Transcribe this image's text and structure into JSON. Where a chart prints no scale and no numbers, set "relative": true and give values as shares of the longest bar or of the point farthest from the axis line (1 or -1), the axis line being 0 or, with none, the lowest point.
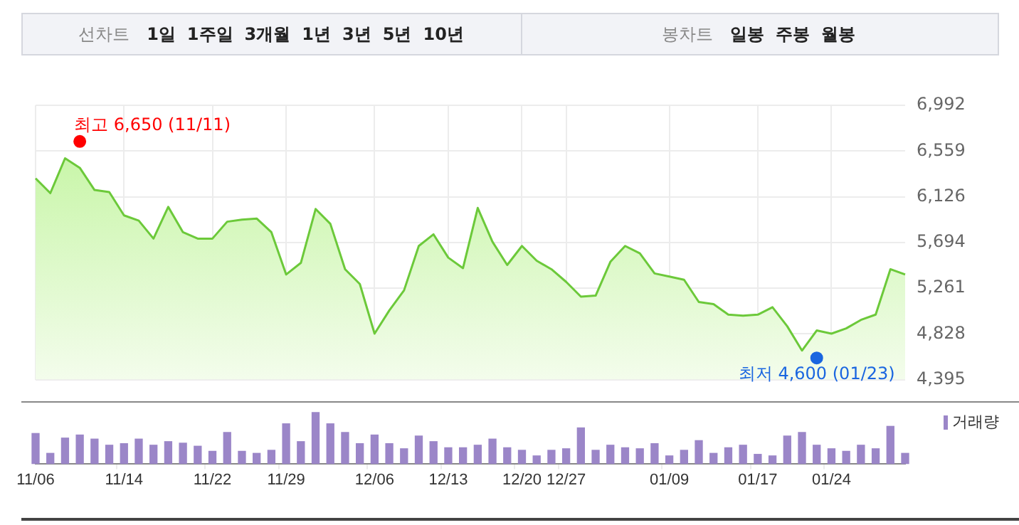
{
  "chart_data": [
    {
      "type": "other",
      "annotations": [
        "선차트",
        "1일",
        "1주일",
        "3개월",
        "1년",
        "3년",
        "5년",
        "10년"
      ]
    },
    {
      "type": "other",
      "annotations": [
        "봉차트",
        "일봉",
        "주봉",
        "월봉"
      ]
    },
    {
      "type": "area",
      "tick_labels": "y",
      "grid": true,
      "categories": [
        null,
        null,
        null,
        null,
        null,
        null,
        null,
        null,
        null,
        null,
        null,
        null,
        null,
        null,
        null,
        null,
        null,
        null,
        null,
        null,
        null,
        null,
        null,
        null,
        null,
        null,
        null,
        null,
        null,
        null,
        null,
        null,
        null,
        null,
        null,
        null,
        null,
        null,
        null,
        null,
        null,
        null,
        null,
        null,
        null,
        null,
        null,
        null,
        null,
        null,
        null,
        null,
        null,
        null,
        null,
        null,
        null,
        null,
        null,
        null
      ],
      "ylim": [
        4395,
        6992
      ],
      "yticks": [
        {
          "value": 4395,
          "label": "4,395"
        },
        {
          "value": 4828,
          "label": "4,828"
        },
        {
          "value": 5261,
          "label": "5,261"
        },
        {
          "value": 5694,
          "label": "5,694"
        },
        {
          "value": 6126,
          "label": "6,126"
        },
        {
          "value": 6559,
          "label": "6,559"
        },
        {
          "value": 6992,
          "label": "6,992"
        }
      ],
      "series": [
        {
          "type": "area",
          "color": "#6cc93a",
          "values": [
            6300,
            6160,
            6490,
            6400,
            6190,
            6170,
            5950,
            5900,
            5730,
            6030,
            5790,
            5730,
            5730,
            5890,
            5910,
            5920,
            5790,
            5390,
            5500,
            6010,
            5870,
            5440,
            5300,
            4830,
            5050,
            5240,
            5660,
            5770,
            5550,
            5450,
            6020,
            5700,
            5480,
            5660,
            5520,
            5440,
            5320,
            5180,
            5190,
            5510,
            5660,
            5590,
            5400,
            5370,
            5340,
            5130,
            5110,
            5010,
            5000,
            5010,
            5080,
            4900,
            4670,
            4860,
            4830,
            4880,
            4960,
            5010,
            5440,
            5390
          ]
        },
        {
          "type": "scatter",
          "marker": "circle",
          "values": [
            null,
            null,
            null,
            6650,
            null,
            null,
            null,
            null,
            null,
            null,
            null,
            null,
            null,
            null,
            null,
            null,
            null,
            null,
            null,
            null,
            null,
            null,
            null,
            null,
            null,
            null,
            null,
            null,
            null,
            null,
            null,
            null,
            null,
            null,
            null,
            null,
            null,
            null,
            null,
            null,
            null,
            null,
            null,
            null,
            null,
            null,
            null,
            null,
            null,
            null,
            null,
            null,
            null,
            4600,
            null,
            null,
            null,
            null,
            null,
            null
          ],
          "colors": [
            null,
            null,
            null,
            "#ff0000",
            null,
            null,
            null,
            null,
            null,
            null,
            null,
            null,
            null,
            null,
            null,
            null,
            null,
            null,
            null,
            null,
            null,
            null,
            null,
            null,
            null,
            null,
            null,
            null,
            null,
            null,
            null,
            null,
            null,
            null,
            null,
            null,
            null,
            null,
            null,
            null,
            null,
            null,
            null,
            null,
            null,
            null,
            null,
            null,
            null,
            null,
            null,
            null,
            null,
            "#1a66e0",
            null,
            null,
            null,
            null,
            null,
            null
          ]
        }
      ],
      "annotations": [
        "최고 6,650 (11/11)",
        "최저 4,600 (01/23)"
      ]
    },
    {
      "type": "bar",
      "relative": true,
      "tick_labels": "x",
      "legend": "top right",
      "categories": [
        "11/06",
        null,
        null,
        null,
        null,
        null,
        "11/14",
        null,
        null,
        null,
        null,
        null,
        "11/22",
        null,
        null,
        null,
        null,
        "11/29",
        null,
        null,
        null,
        null,
        null,
        "12/06",
        null,
        null,
        null,
        null,
        "12/13",
        null,
        null,
        null,
        null,
        "12/20",
        null,
        null,
        "12/27",
        null,
        null,
        null,
        null,
        null,
        null,
        "01/09",
        null,
        null,
        null,
        null,
        null,
        "01/17",
        null,
        null,
        null,
        null,
        "01/24",
        null,
        null,
        null,
        null,
        null
      ],
      "series": [
        {
          "name": "거래량",
          "color": "#9b86c8",
          "values": [
            0.59,
            0.2,
            0.5,
            0.56,
            0.48,
            0.36,
            0.39,
            0.48,
            0.36,
            0.43,
            0.4,
            0.34,
            0.24,
            0.61,
            0.24,
            0.2,
            0.26,
            0.78,
            0.43,
            1,
            0.78,
            0.61,
            0.39,
            0.56,
            0.39,
            0.29,
            0.54,
            0.43,
            0.31,
            0.31,
            0.36,
            0.48,
            0.31,
            0.26,
            0.15,
            0.26,
            0.29,
            0.7,
            0.26,
            0.36,
            0.31,
            0.29,
            0.39,
            0.15,
            0.26,
            0.45,
            0.2,
            0.31,
            0.36,
            0.18,
            0.15,
            0.54,
            0.61,
            0.36,
            0.29,
            0.24,
            0.36,
            0.29,
            0.73,
            0.2
          ]
        }
      ]
    }
  ]
}
